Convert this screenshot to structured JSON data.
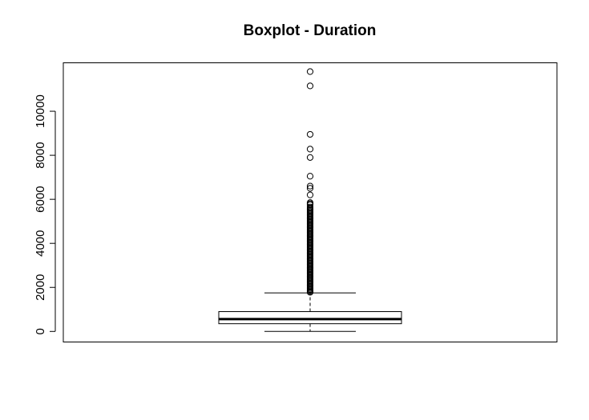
{
  "chart_data": {
    "type": "boxplot",
    "title": "Boxplot - Duration",
    "xlabel": "",
    "ylabel": "",
    "ylim": [
      -480,
      12200
    ],
    "yticks": [
      0,
      2000,
      4000,
      6000,
      8000,
      10000
    ],
    "ytick_labels": [
      "0",
      "2000",
      "4000",
      "6000",
      "8000",
      "10000"
    ],
    "box": {
      "min": 0,
      "q1": 350,
      "median": 560,
      "q3": 900,
      "whisker_high": 1750
    },
    "outliers": [
      11800,
      11150,
      8950,
      8280,
      7900,
      7050,
      6600,
      6500,
      6200,
      5850,
      5800,
      5750,
      5650,
      5600,
      5550,
      5500,
      5450,
      5400,
      5350,
      5300,
      5250,
      5200,
      5150,
      5100,
      5050,
      5000,
      4950,
      4900,
      4850,
      4800,
      4750,
      4700,
      4650,
      4600,
      4550,
      4500,
      4450,
      4400,
      4350,
      4300,
      4250,
      4200,
      4150,
      4100,
      4050,
      4000,
      3950,
      3900,
      3850,
      3800,
      3750,
      3700,
      3650,
      3600,
      3550,
      3500,
      3450,
      3400,
      3350,
      3300,
      3250,
      3200,
      3150,
      3100,
      3050,
      3000,
      2950,
      2900,
      2850,
      2800,
      2750,
      2700,
      2650,
      2600,
      2550,
      2500,
      2450,
      2400,
      2350,
      2300,
      2250,
      2200,
      2150,
      2100,
      2050,
      2000,
      1950,
      1900,
      1850,
      1800,
      1780
    ],
    "grid": false
  }
}
